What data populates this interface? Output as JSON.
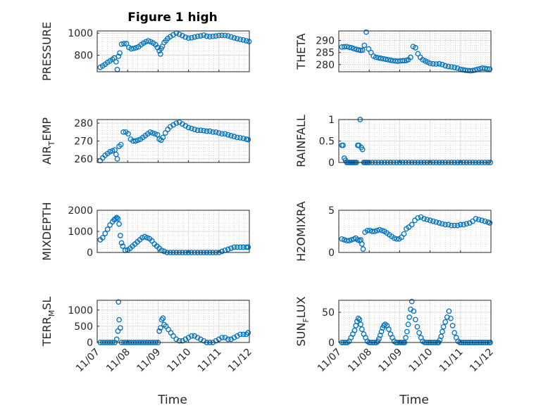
{
  "figure": {
    "title": "Figure 1 high"
  },
  "colors": {
    "marker": "#0072BD",
    "axis": "#262626",
    "grid": "#dcdcdc",
    "minor_grid": "#bdbdbd"
  },
  "chart_data": [
    {
      "type": "scatter",
      "ylabel": "PRESSURE",
      "xlim": [
        0,
        5
      ],
      "ylim": [
        650,
        1020
      ],
      "yticks": [
        800,
        1000
      ],
      "ytick_labels": [
        "800",
        "1000"
      ],
      "x": [
        0.1,
        0.18,
        0.26,
        0.34,
        0.42,
        0.5,
        0.56,
        0.62,
        0.66,
        0.7,
        0.74,
        0.8,
        0.88,
        0.96,
        1.04,
        1.12,
        1.2,
        1.28,
        1.36,
        1.44,
        1.52,
        1.6,
        1.68,
        1.76,
        1.84,
        1.92,
        1.98,
        2.04,
        2.08,
        2.1,
        2.14,
        2.2,
        2.26,
        2.32,
        2.4,
        2.5,
        2.6,
        2.7,
        2.8,
        2.9,
        3.0,
        3.1,
        3.2,
        3.3,
        3.4,
        3.5,
        3.6,
        3.7,
        3.8,
        3.9,
        4.0,
        4.1,
        4.2,
        4.3,
        4.4,
        4.5,
        4.6,
        4.7,
        4.8,
        4.9,
        4.99
      ],
      "y": [
        690,
        703,
        718,
        735,
        748,
        762,
        775,
        740,
        670,
        790,
        820,
        900,
        905,
        905,
        870,
        858,
        862,
        868,
        876,
        895,
        910,
        922,
        930,
        922,
        910,
        895,
        870,
        840,
        810,
        860,
        880,
        915,
        932,
        952,
        968,
        985,
        1000,
        990,
        977,
        964,
        955,
        958,
        965,
        971,
        975,
        982,
        972,
        968,
        971,
        974,
        978,
        980,
        979,
        975,
        966,
        957,
        950,
        943,
        938,
        930,
        924
      ]
    },
    {
      "type": "scatter",
      "ylabel": "THETA",
      "xlim": [
        0,
        5
      ],
      "ylim": [
        277,
        294
      ],
      "yticks": [
        280,
        285,
        290
      ],
      "ytick_labels": [
        "280",
        "285",
        "290"
      ],
      "x": [
        0.1,
        0.18,
        0.26,
        0.34,
        0.42,
        0.5,
        0.58,
        0.66,
        0.72,
        0.78,
        0.84,
        0.9,
        0.98,
        1.06,
        1.14,
        1.22,
        1.3,
        1.38,
        1.46,
        1.54,
        1.62,
        1.7,
        1.78,
        1.86,
        1.94,
        2.02,
        2.1,
        2.16,
        2.22,
        2.28,
        2.36,
        2.44,
        2.52,
        2.6,
        2.68,
        2.76,
        2.84,
        2.92,
        3.0,
        3.1,
        3.2,
        3.3,
        3.4,
        3.5,
        3.6,
        3.7,
        3.8,
        3.9,
        4.0,
        4.08,
        4.16,
        4.24,
        4.32,
        4.4,
        4.48,
        4.56,
        4.64,
        4.72,
        4.8,
        4.88,
        4.96
      ],
      "y": [
        287.3,
        287.4,
        287.5,
        287.2,
        287.0,
        286.6,
        286.3,
        286.1,
        285.9,
        286.0,
        288.0,
        293.5,
        286.5,
        285.0,
        283.5,
        283.0,
        282.8,
        282.6,
        282.4,
        282.2,
        282.0,
        281.8,
        281.6,
        281.5,
        281.4,
        281.5,
        281.6,
        281.6,
        281.7,
        282.0,
        283.0,
        287.5,
        287.0,
        284.5,
        283.0,
        282.0,
        281.5,
        281.0,
        280.5,
        280.3,
        280.2,
        280.3,
        280.0,
        279.5,
        279.2,
        279.0,
        278.8,
        278.5,
        278.0,
        277.8,
        277.6,
        277.5,
        277.4,
        277.5,
        277.7,
        278.0,
        278.3,
        278.5,
        278.4,
        278.2,
        278.1
      ]
    },
    {
      "type": "scatter",
      "ylabel": "AIR_TEMP",
      "xlim": [
        0,
        5
      ],
      "ylim": [
        258,
        282
      ],
      "yticks": [
        260,
        270,
        280
      ],
      "ytick_labels": [
        "260",
        "270",
        "280"
      ],
      "x": [
        0.1,
        0.18,
        0.26,
        0.34,
        0.42,
        0.5,
        0.58,
        0.62,
        0.66,
        0.72,
        0.78,
        0.86,
        0.94,
        1.02,
        1.1,
        1.18,
        1.26,
        1.34,
        1.42,
        1.5,
        1.58,
        1.66,
        1.74,
        1.82,
        1.9,
        1.98,
        2.04,
        2.1,
        2.16,
        2.24,
        2.32,
        2.4,
        2.5,
        2.6,
        2.7,
        2.8,
        2.9,
        3.0,
        3.1,
        3.2,
        3.3,
        3.4,
        3.5,
        3.6,
        3.7,
        3.8,
        3.9,
        4.0,
        4.1,
        4.2,
        4.3,
        4.4,
        4.5,
        4.6,
        4.7,
        4.8,
        4.9,
        4.96
      ],
      "y": [
        259,
        260.5,
        262,
        263,
        264,
        264.5,
        265,
        262.5,
        260,
        267,
        268,
        275,
        275,
        274,
        271,
        270,
        270,
        270.5,
        271,
        272,
        273,
        274,
        275,
        274.5,
        274,
        273.5,
        271,
        270.5,
        272,
        274.5,
        276.5,
        278,
        279,
        280,
        280.5,
        279.5,
        278.5,
        277.5,
        277,
        276.5,
        276,
        276,
        275.8,
        275.5,
        275.5,
        275,
        275,
        274.5,
        274,
        274,
        273.5,
        273,
        272.5,
        272,
        271.8,
        271.5,
        271,
        270.8
      ]
    },
    {
      "type": "scatter",
      "ylabel": "RAINFALL",
      "xlim": [
        0,
        5
      ],
      "ylim": [
        0,
        1
      ],
      "yticks": [
        0,
        0.5,
        1
      ],
      "ytick_labels": [
        "0",
        "0.5",
        "1"
      ],
      "x": [
        0.1,
        0.14,
        0.18,
        0.22,
        0.26,
        0.3,
        0.34,
        0.38,
        0.42,
        0.46,
        0.5,
        0.54,
        0.58,
        0.62,
        0.66,
        0.7,
        0.74,
        0.78,
        0.82,
        0.86,
        0.9,
        0.94,
        1.0,
        1.1,
        1.2,
        1.3,
        1.4,
        1.5,
        1.6,
        1.7,
        1.8,
        1.9,
        2.0,
        2.1,
        2.2,
        2.3,
        2.4,
        2.5,
        2.6,
        2.7,
        2.8,
        2.9,
        3.0,
        3.1,
        3.2,
        3.3,
        3.4,
        3.5,
        3.6,
        3.7,
        3.8,
        3.9,
        4.0,
        4.1,
        4.2,
        4.3,
        4.4,
        4.5,
        4.6,
        4.7,
        4.8,
        4.9,
        4.98
      ],
      "y": [
        0.4,
        0.4,
        0.1,
        0.05,
        0,
        0,
        0,
        0,
        0,
        0,
        0,
        0,
        0,
        0.4,
        0.4,
        1.0,
        0.35,
        0.3,
        0,
        0,
        0,
        0,
        0,
        0,
        0,
        0,
        0,
        0,
        0,
        0,
        0,
        0,
        0,
        0,
        0,
        0,
        0,
        0,
        0,
        0,
        0,
        0,
        0,
        0,
        0,
        0,
        0,
        0,
        0,
        0,
        0,
        0,
        0,
        0,
        0,
        0,
        0,
        0,
        0,
        0,
        0,
        0,
        0
      ]
    },
    {
      "type": "scatter",
      "ylabel": "MIXDEPTH",
      "xlim": [
        0,
        5
      ],
      "ylim": [
        0,
        2000
      ],
      "yticks": [
        0,
        1000,
        2000
      ],
      "ytick_labels": [
        "0",
        "1000",
        "2000"
      ],
      "x": [
        0.1,
        0.18,
        0.26,
        0.34,
        0.42,
        0.5,
        0.56,
        0.6,
        0.64,
        0.68,
        0.72,
        0.76,
        0.8,
        0.84,
        0.92,
        1.0,
        1.08,
        1.16,
        1.24,
        1.32,
        1.4,
        1.48,
        1.56,
        1.64,
        1.72,
        1.8,
        1.88,
        1.96,
        2.04,
        2.12,
        2.2,
        2.3,
        2.4,
        2.5,
        2.6,
        2.7,
        2.8,
        2.9,
        3.0,
        3.1,
        3.2,
        3.3,
        3.4,
        3.5,
        3.6,
        3.7,
        3.8,
        3.9,
        4.0,
        4.1,
        4.2,
        4.3,
        4.4,
        4.5,
        4.6,
        4.7,
        4.8,
        4.9,
        4.96
      ],
      "y": [
        600,
        700,
        900,
        1100,
        1300,
        1450,
        1550,
        1600,
        1650,
        1600,
        1350,
        800,
        450,
        300,
        100,
        120,
        200,
        300,
        400,
        500,
        600,
        700,
        750,
        700,
        650,
        550,
        400,
        300,
        200,
        100,
        50,
        0,
        0,
        0,
        0,
        0,
        0,
        0,
        0,
        0,
        0,
        0,
        0,
        0,
        0,
        0,
        0,
        0,
        0,
        50,
        100,
        150,
        200,
        250,
        250,
        250,
        250,
        250,
        250
      ]
    },
    {
      "type": "scatter",
      "ylabel": "H2OMIXRA",
      "xlim": [
        0,
        5
      ],
      "ylim": [
        0,
        5
      ],
      "yticks": [
        0,
        5
      ],
      "ytick_labels": [
        "0",
        "5"
      ],
      "x": [
        0.1,
        0.18,
        0.26,
        0.34,
        0.42,
        0.5,
        0.56,
        0.62,
        0.68,
        0.72,
        0.76,
        0.8,
        0.86,
        0.94,
        1.02,
        1.1,
        1.18,
        1.26,
        1.34,
        1.42,
        1.5,
        1.58,
        1.66,
        1.74,
        1.82,
        1.9,
        1.98,
        2.06,
        2.14,
        2.22,
        2.3,
        2.4,
        2.5,
        2.6,
        2.7,
        2.8,
        2.9,
        3.0,
        3.1,
        3.2,
        3.3,
        3.4,
        3.5,
        3.6,
        3.7,
        3.8,
        3.9,
        4.0,
        4.1,
        4.2,
        4.3,
        4.4,
        4.5,
        4.6,
        4.7,
        4.8,
        4.9,
        4.96
      ],
      "y": [
        1.6,
        1.5,
        1.4,
        1.4,
        1.5,
        1.6,
        1.7,
        1.5,
        1.4,
        1.5,
        1.0,
        0.4,
        2.4,
        2.6,
        2.6,
        2.5,
        2.5,
        2.6,
        2.7,
        2.6,
        2.5,
        2.3,
        2.1,
        1.9,
        1.7,
        1.6,
        1.6,
        1.8,
        2.2,
        2.8,
        3.0,
        3.3,
        3.8,
        4.1,
        4.2,
        4.0,
        3.9,
        3.8,
        3.7,
        3.6,
        3.5,
        3.4,
        3.3,
        3.3,
        3.2,
        3.2,
        3.2,
        3.3,
        3.3,
        3.4,
        3.5,
        3.7,
        4.0,
        3.9,
        3.8,
        3.7,
        3.6,
        3.5
      ]
    },
    {
      "type": "scatter",
      "ylabel": "TERR_MSL",
      "xlim": [
        0,
        5
      ],
      "ylim": [
        0,
        1300
      ],
      "yticks": [
        0,
        500,
        1000
      ],
      "ytick_labels": [
        "0",
        "500",
        "1000"
      ],
      "x": [
        0.1,
        0.18,
        0.26,
        0.34,
        0.42,
        0.5,
        0.58,
        0.64,
        0.68,
        0.7,
        0.72,
        0.76,
        0.8,
        0.88,
        0.96,
        1.04,
        1.12,
        1.2,
        1.28,
        1.36,
        1.44,
        1.52,
        1.6,
        1.68,
        1.76,
        1.84,
        1.92,
        2.0,
        2.04,
        2.08,
        2.12,
        2.16,
        2.2,
        2.26,
        2.34,
        2.42,
        2.5,
        2.6,
        2.7,
        2.8,
        2.9,
        3.0,
        3.1,
        3.2,
        3.3,
        3.4,
        3.5,
        3.6,
        3.7,
        3.8,
        3.9,
        4.0,
        4.1,
        4.2,
        4.3,
        4.4,
        4.5,
        4.6,
        4.7,
        4.8,
        4.9,
        4.96
      ],
      "y": [
        0,
        0,
        0,
        0,
        0,
        0,
        0,
        100,
        350,
        1250,
        700,
        450,
        0,
        0,
        0,
        0,
        0,
        0,
        0,
        0,
        0,
        0,
        0,
        0,
        0,
        0,
        0,
        0,
        350,
        450,
        700,
        750,
        550,
        500,
        400,
        300,
        200,
        100,
        50,
        50,
        100,
        150,
        200,
        200,
        150,
        100,
        50,
        0,
        0,
        0,
        50,
        100,
        150,
        150,
        100,
        100,
        150,
        200,
        250,
        250,
        250,
        300
      ]
    },
    {
      "type": "scatter",
      "ylabel": "SUN_FLUX",
      "xlim": [
        0,
        5
      ],
      "ylim": [
        0,
        70
      ],
      "yticks": [
        0,
        50
      ],
      "ytick_labels": [
        "0",
        "50"
      ],
      "x": [
        0.1,
        0.16,
        0.22,
        0.28,
        0.34,
        0.4,
        0.46,
        0.52,
        0.56,
        0.6,
        0.64,
        0.68,
        0.72,
        0.76,
        0.82,
        0.88,
        0.94,
        1.0,
        1.06,
        1.12,
        1.18,
        1.24,
        1.28,
        1.32,
        1.36,
        1.4,
        1.44,
        1.48,
        1.52,
        1.58,
        1.64,
        1.7,
        1.76,
        1.82,
        1.88,
        1.94,
        2.0,
        2.04,
        2.08,
        2.12,
        2.16,
        2.2,
        2.24,
        2.28,
        2.32,
        2.36,
        2.4,
        2.46,
        2.52,
        2.58,
        2.64,
        2.7,
        2.76,
        2.82,
        2.88,
        2.94,
        3.0,
        3.06,
        3.12,
        3.18,
        3.24,
        3.28,
        3.32,
        3.36,
        3.4,
        3.44,
        3.5,
        3.56,
        3.62,
        3.68,
        3.74,
        3.8,
        3.86,
        3.92,
        3.98,
        4.04,
        4.1,
        4.16,
        4.22,
        4.28,
        4.34,
        4.4,
        4.46,
        4.52,
        4.58,
        4.64,
        4.7,
        4.76,
        4.82,
        4.88,
        4.94,
        4.98
      ],
      "y": [
        0,
        0,
        0,
        0,
        2,
        8,
        14,
        20,
        28,
        35,
        40,
        38,
        30,
        22,
        14,
        8,
        2,
        0,
        0,
        0,
        0,
        0,
        2,
        6,
        12,
        18,
        24,
        28,
        30,
        28,
        22,
        14,
        8,
        2,
        0,
        0,
        0,
        0,
        0,
        0,
        0,
        8,
        18,
        30,
        42,
        55,
        68,
        52,
        38,
        26,
        16,
        8,
        2,
        0,
        0,
        0,
        0,
        0,
        0,
        0,
        0,
        0,
        4,
        10,
        18,
        26,
        34,
        42,
        52,
        40,
        28,
        16,
        8,
        2,
        0,
        0,
        0,
        0,
        0,
        0,
        0,
        0,
        0,
        0,
        0,
        0,
        0,
        0,
        0,
        0,
        0,
        0
      ]
    }
  ],
  "x_axis": {
    "tick_labels": [
      "11/07",
      "11/08",
      "11/09",
      "11/10",
      "11/11",
      "11/12"
    ],
    "label": "Time"
  }
}
